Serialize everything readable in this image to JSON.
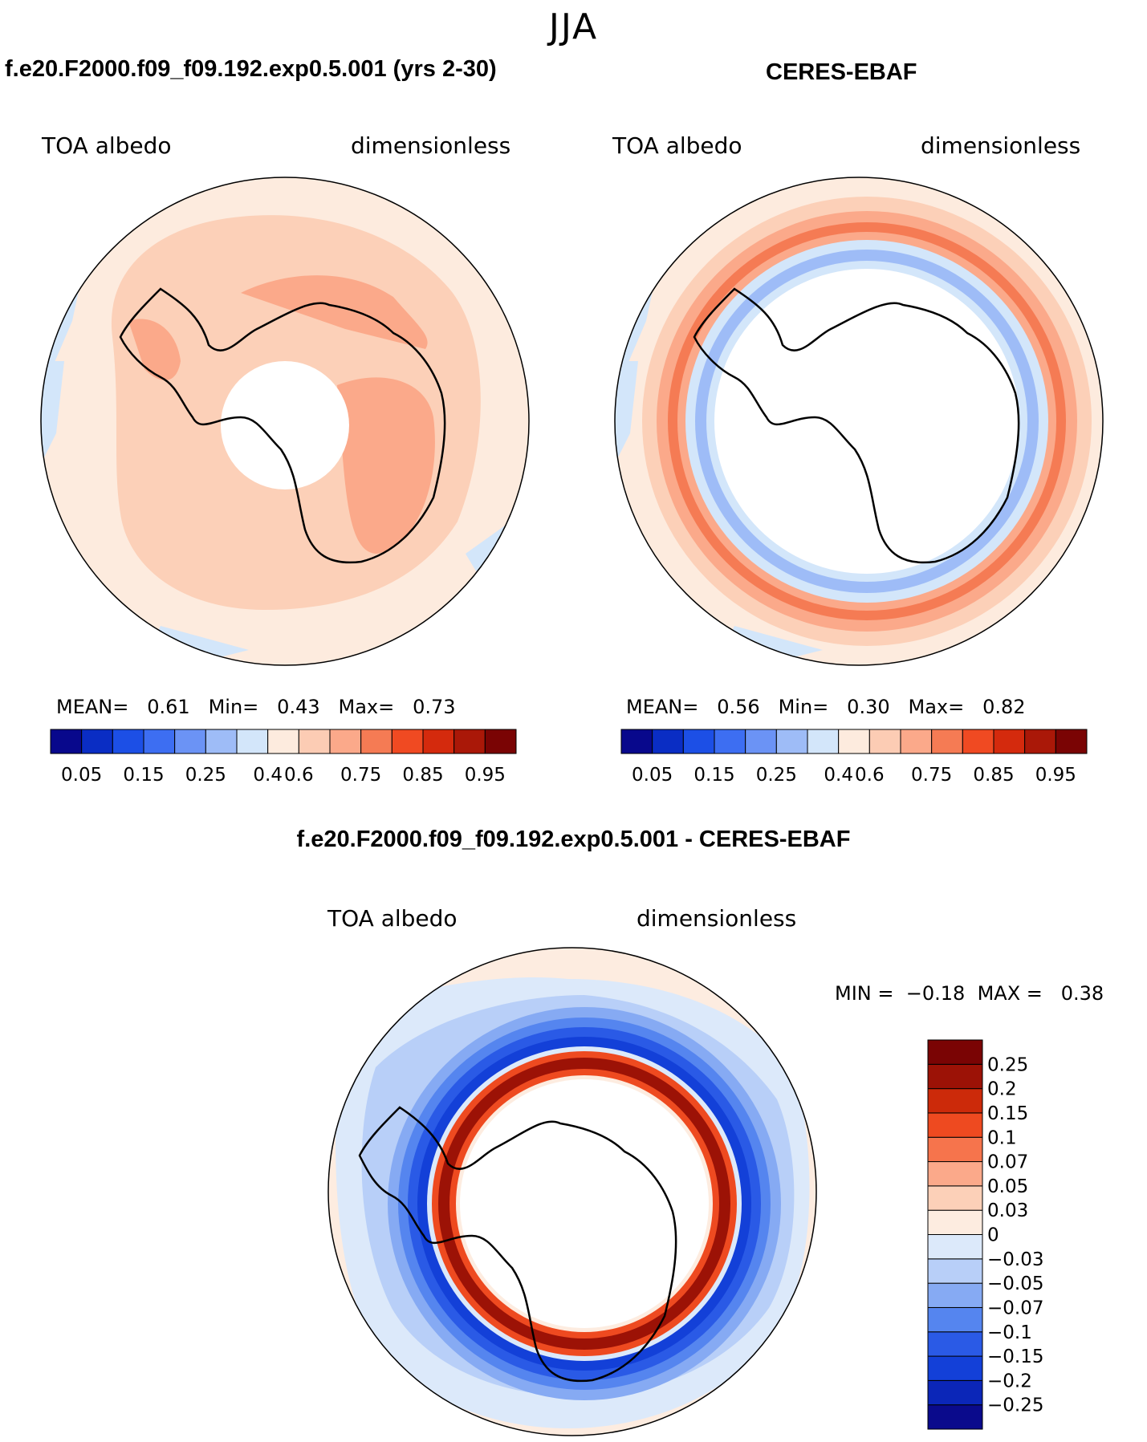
{
  "figure_title": "JJA",
  "panels": {
    "model": {
      "title": "f.e20.F2000.f09_f09.192.exp0.5.001 (yrs 2-30)",
      "left_label": "TOA albedo",
      "right_label": "dimensionless",
      "stats": {
        "mean_label": "MEAN=",
        "mean": "0.61",
        "min_label": "Min=",
        "min": "0.43",
        "max_label": "Max=",
        "max": "0.73"
      }
    },
    "obs": {
      "title": "CERES-EBAF",
      "left_label": "TOA albedo",
      "right_label": "dimensionless",
      "stats": {
        "mean_label": "MEAN=",
        "mean": "0.56",
        "min_label": "Min=",
        "min": "0.30",
        "max_label": "Max=",
        "max": "0.82"
      }
    },
    "diff": {
      "title": "f.e20.F2000.f09_f09.192.exp0.5.001 - CERES-EBAF",
      "left_label": "TOA albedo",
      "right_label": "dimensionless",
      "stats": {
        "min_label": "MIN =",
        "min": "−0.18",
        "max_label": "MAX =",
        "max": "0.38"
      }
    }
  },
  "colorbar_abs": {
    "colors": [
      "#08088c",
      "#0a2dc4",
      "#1c4fe6",
      "#3d6ef2",
      "#6b93f5",
      "#9ebcf7",
      "#d3e6fa",
      "#fdebde",
      "#fcccb4",
      "#fba98a",
      "#f57b54",
      "#f04a22",
      "#d42a0d",
      "#aa1808",
      "#7a0404"
    ],
    "tick_labels": [
      "0.05",
      "0.15",
      "0.25",
      "0.4",
      "0.6",
      "0.75",
      "0.85",
      "0.95"
    ]
  },
  "colorbar_diff": {
    "colors": [
      "#0a0a8c",
      "#0b26b8",
      "#1340d8",
      "#2a5ae6",
      "#5585ef",
      "#86aaf3",
      "#b8cff8",
      "#dce9fa",
      "#fdece0",
      "#fcd0b8",
      "#fba98a",
      "#f6744c",
      "#ee4a20",
      "#cc2a0a",
      "#9c1206",
      "#7a0404"
    ],
    "tick_labels": [
      "0.25",
      "0.2",
      "0.15",
      "0.1",
      "0.07",
      "0.05",
      "0.03",
      "0",
      "−0.03",
      "−0.05",
      "−0.07",
      "−0.1",
      "−0.15",
      "−0.2",
      "−0.25"
    ]
  },
  "map_colors": {
    "ocean_bg": "#fdebde",
    "model_ring_outer": "#fcd0b8",
    "model_inner": "#fcccb4",
    "model_high": "#fba98a",
    "light_blue": "#d3e6fa",
    "coast": "#000000"
  }
}
